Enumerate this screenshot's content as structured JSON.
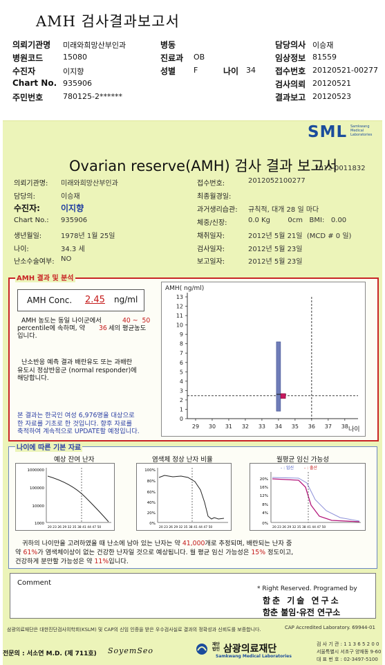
{
  "header": {
    "title": "AMH 검사결과보고서",
    "rows": [
      {
        "cells": [
          {
            "label": "의뢰기관명",
            "value": "미래와희망산부인과"
          },
          {
            "label": "병동",
            "value": ""
          },
          {
            "label": "담당의사",
            "value": "이승재"
          }
        ]
      },
      {
        "cells": [
          {
            "label": "병원코드",
            "value": "15080"
          },
          {
            "label": "진료과",
            "value": "OB"
          },
          {
            "label": "임상정보",
            "value": "81559"
          }
        ]
      },
      {
        "cells": [
          {
            "label": "수진자",
            "value": "이지향"
          },
          {
            "label": "성별",
            "value": "F"
          },
          {
            "label": "나이",
            "value": "34"
          },
          {
            "label": "접수번호",
            "value": "20120521-00277"
          }
        ]
      },
      {
        "cells": [
          {
            "label": "Chart No.",
            "value": "935906"
          },
          {
            "label": "검사의뢰",
            "value": "20120521"
          }
        ]
      },
      {
        "cells": [
          {
            "label": "주민번호",
            "value": "780125-2******"
          },
          {
            "label": "결과보고",
            "value": "20120523"
          }
        ]
      }
    ]
  },
  "report": {
    "logo_text": "SML",
    "logo_sub": [
      "Samkwang",
      "Medical",
      "Laboratories"
    ],
    "title": "Ovarian reserve(AMH) 검사 결과 보고서",
    "report_no": "2012-0011832",
    "info_left": [
      {
        "label": "의뢰기관명:",
        "value": "미래와희망산부인과"
      },
      {
        "label": "담당의:",
        "value": "이승재"
      },
      {
        "label": "수진자:",
        "value": "이지향"
      },
      {
        "label": "Chart No.:",
        "value": "935906"
      },
      {
        "label": "생년월일:",
        "value": "1978년 1월 25일"
      },
      {
        "label": "나이:",
        "value": "34.3 세"
      },
      {
        "label": "난소수술여부:",
        "value": "NO"
      }
    ],
    "info_right": [
      {
        "label": "접수번호:",
        "value": "2012052100277"
      },
      {
        "label": "최종월경일:",
        "value": ""
      },
      {
        "label": "과거생리습관:",
        "value": "규칙적, 대개  28 일 마다"
      },
      {
        "label": "체중/신장:",
        "value": "0.0 Kg        0cm   BMI:   0.00"
      },
      {
        "label": "채취일자:",
        "value": "2012년 5월 21일  (MCD # 0 일)"
      },
      {
        "label": "검사일자:",
        "value": "2012년 5월 23일"
      },
      {
        "label": "보고일자:",
        "value": "2012년 5월 23일"
      }
    ]
  },
  "amh": {
    "section_title": "AMH 결과 및 분석",
    "conc_label": "AMH Conc.",
    "conc_value": "2.45",
    "conc_unit": "ng/ml",
    "para1_a": "AMH 농도는 동일 나이군에서",
    "para1_range": "40 ~  50",
    "para1_b": "percentile에 속하며, 약",
    "para1_age": "36",
    "para1_c": "세의 평균농도",
    "para1_d": "입니다.",
    "para2": [
      "난소반응 예측 결과 배란유도 또는 과배란",
      "유도시 정상반응군 (normal responder)에",
      "해당합니다."
    ],
    "para3": [
      "본 결과는 한국인 여성 6,976명을 대상으로",
      "한 자료를 기초로 한 것입니다. 향후 자료를",
      "축적하여 계속적으로 UPDATE할 예정입니다."
    ]
  },
  "chart_data": [
    {
      "type": "scatter",
      "title": "",
      "ylabel": "AMH( ng/ml)",
      "xlabel": "나이",
      "x_ticks": [
        29,
        30,
        31,
        32,
        33,
        34,
        35,
        36,
        37,
        38
      ],
      "y_ticks": [
        0,
        1,
        2,
        3,
        4,
        5,
        6,
        7,
        8,
        9,
        10,
        11,
        12,
        13
      ],
      "xlim": [
        28.5,
        38.8
      ],
      "ylim": [
        0,
        13
      ],
      "range_bar": {
        "x": 34,
        "low": 0.8,
        "high": 8.2
      },
      "point": {
        "x": 34.3,
        "y": 2.45
      },
      "ref_lines": {
        "h": 2.45,
        "v": 36
      }
    }
  ],
  "basic": {
    "section_title": "나이에 따른 기본 자료",
    "chart1_title": "예상 잔여 난자",
    "chart1_yticks": [
      "1000000",
      "100000",
      "10000",
      "1000"
    ],
    "chart2_title": "염색체 정상 난자 비율",
    "chart2_yticks": [
      "100%",
      "80%",
      "60%",
      "40%",
      "20%",
      "0%"
    ],
    "chart3_title": "월평균 임신 가능성",
    "chart3_legend_a": "- : 임신",
    "chart3_legend_b": "- : 출산",
    "chart3_yticks": [
      "20%",
      "16%",
      "12%",
      "8%",
      "4%",
      "0%"
    ],
    "x_ticks": "20 23 26 29 32 35 38 41 44 47 50",
    "summary1_a": "귀하의 나이만을 고려하였을 때 난소에 남아 있는 난자는 약",
    "summary1_count": "41,000",
    "summary1_b": "개로 추정되며, 배란되는 난자 중",
    "summary2_a": "약",
    "summary2_pct": "61%",
    "summary2_b": "가 염색체이상이 없는 건강한 난자일 것으로 예상됩니다. 월 평균 임신 가능성은",
    "summary2_preg": "15%",
    "summary2_c": "정도이고,",
    "summary3_a": "건강하게 분만할 가능성은 약",
    "summary3_birth": "11%",
    "summary3_b": "입니다."
  },
  "comment": {
    "label": "Comment",
    "rights": "* Right Reserved. Programed by",
    "inst1": "함춘 기술 연구소",
    "inst2": "함춘 불임·유전 연구소"
  },
  "footer": {
    "note": "삼광의료재단은 대한진단검사의학회(KSLM) 및 CAP의 신임 인증을 받은 우수검사실로 결과의 정확성과 신뢰도를 보증합니다.",
    "cap": "CAP Accredited Laboratory. 69944-01",
    "doctor": "전문의 : 서소연 M.D. (제 711호)",
    "signature": "SoyemSeo",
    "org_prefix": "재단\n법인",
    "org_name": "삼광의료재단",
    "org_en": "Samkwang Medical Laboratories",
    "contact1": "검 사 기 관 : 1 1 3 6 5 2 0 0",
    "contact2": "서울특별시 서초구 양재동 9-60",
    "contact3": "대 표 번 호 : 02-3497-5100"
  }
}
